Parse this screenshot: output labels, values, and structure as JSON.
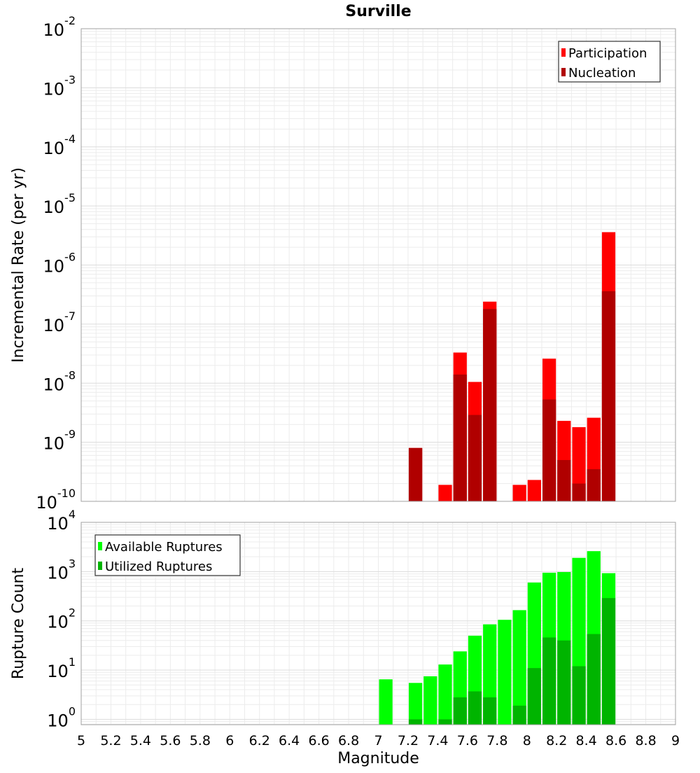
{
  "chart_data": [
    {
      "type": "bar",
      "title": "Surville",
      "xlabel": "",
      "ylabel": "Incremental Rate (per yr)",
      "xlim": [
        5,
        9
      ],
      "ylim": [
        1e-10,
        0.01
      ],
      "yscale": "log",
      "y_tick_exponents": [
        "-2",
        "-3",
        "-4",
        "-5",
        "-6",
        "-7",
        "-8",
        "-9",
        "-10"
      ],
      "grid": true,
      "legend_position": "top-right",
      "bar_width": 0.1,
      "series": [
        {
          "name": "Participation",
          "color": "#ff0000",
          "x": [
            7.25,
            7.45,
            7.55,
            7.65,
            7.75,
            7.95,
            8.05,
            8.15,
            8.25,
            8.35,
            8.45,
            8.55
          ],
          "values": [
            8e-10,
            1.9e-10,
            3.3e-08,
            1.05e-08,
            2.4e-07,
            1.9e-10,
            2.3e-10,
            2.6e-08,
            2.3e-09,
            1.8e-09,
            2.6e-09,
            3.6e-06
          ]
        },
        {
          "name": "Nucleation",
          "color": "#b00000",
          "x": [
            7.25,
            7.55,
            7.65,
            7.75,
            8.15,
            8.25,
            8.35,
            8.45,
            8.55
          ],
          "values": [
            8e-10,
            1.4e-08,
            2.9e-09,
            1.8e-07,
            5.3e-09,
            5e-10,
            2e-10,
            3.5e-10,
            3.6e-07
          ]
        }
      ]
    },
    {
      "type": "bar",
      "title": "",
      "xlabel": "Magnitude",
      "ylabel": "Rupture Count",
      "xlim": [
        5,
        9
      ],
      "ylim": [
        0.78,
        10000
      ],
      "yscale": "log",
      "y_tick_exponents": [
        "0",
        "1",
        "2",
        "3",
        "4"
      ],
      "x_ticks": [
        "5",
        "5.2",
        "5.4",
        "5.6",
        "5.8",
        "6",
        "6.2",
        "6.4",
        "6.6",
        "6.8",
        "7",
        "7.2",
        "7.4",
        "7.6",
        "7.8",
        "8",
        "8.2",
        "8.4",
        "8.6",
        "8.8",
        "9"
      ],
      "grid": true,
      "legend_position": "top-left",
      "bar_width": 0.1,
      "series": [
        {
          "name": "Available Ruptures",
          "color": "#00ff00",
          "x": [
            7.05,
            7.25,
            7.35,
            7.45,
            7.55,
            7.65,
            7.75,
            7.85,
            7.95,
            8.05,
            8.15,
            8.25,
            8.35,
            8.45,
            8.55
          ],
          "values": [
            6.5,
            5.5,
            7.5,
            13,
            24,
            50,
            85,
            105,
            165,
            600,
            950,
            980,
            1900,
            2600,
            930
          ]
        },
        {
          "name": "Utilized Ruptures",
          "color": "#00b400",
          "x": [
            7.25,
            7.45,
            7.55,
            7.65,
            7.75,
            7.95,
            8.05,
            8.15,
            8.25,
            8.35,
            8.45,
            8.55
          ],
          "values": [
            1,
            1,
            2.8,
            3.7,
            2.8,
            1.9,
            11,
            46,
            40,
            12,
            54,
            290
          ]
        }
      ]
    }
  ]
}
